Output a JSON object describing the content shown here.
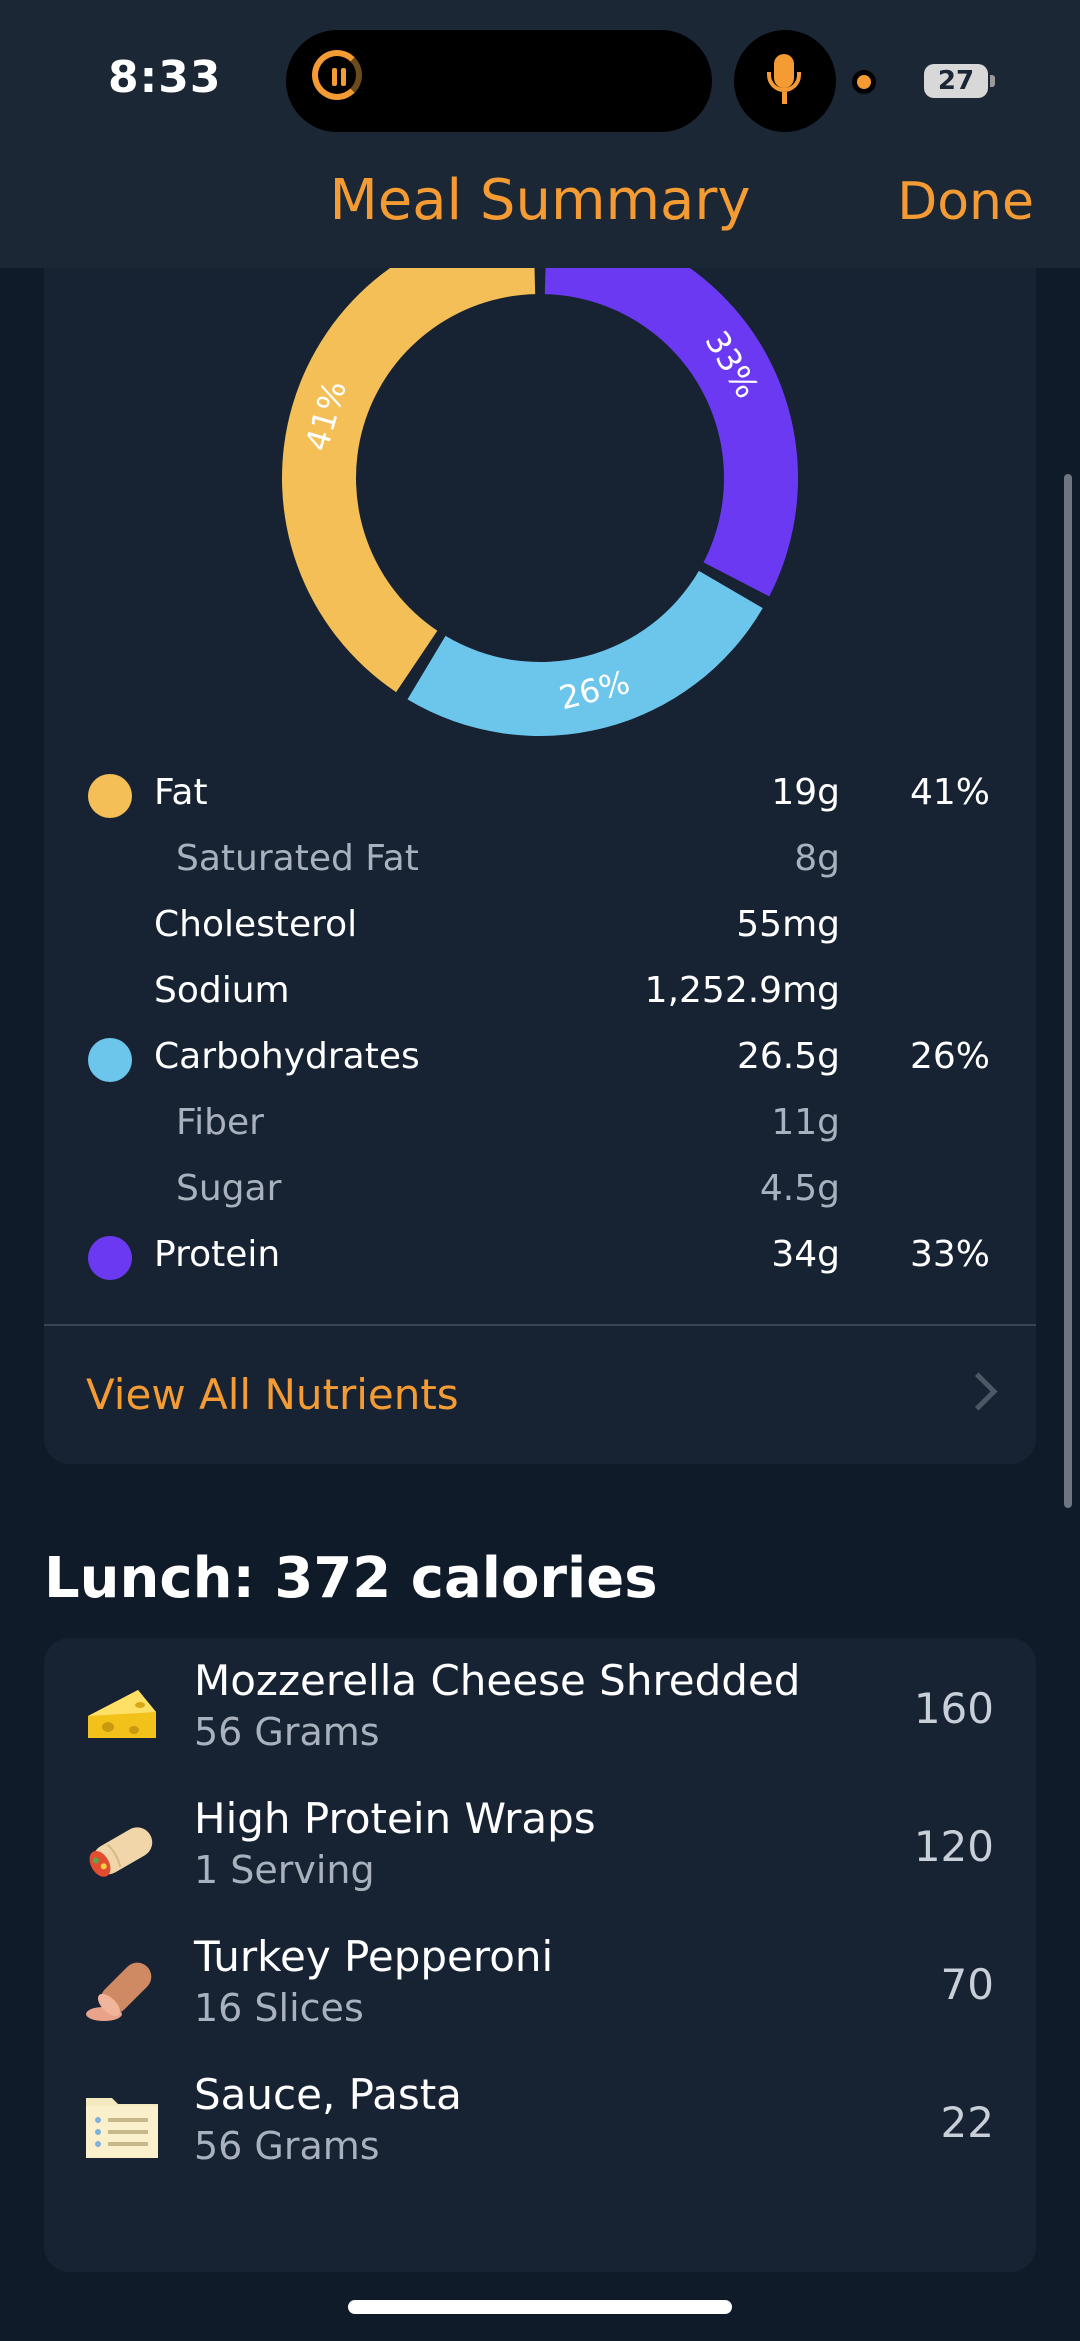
{
  "status_bar": {
    "time": "8:33",
    "battery": "27"
  },
  "header": {
    "title": "Meal Summary",
    "done_label": "Done"
  },
  "chart_data": {
    "type": "pie",
    "categories": [
      "Fat",
      "Carbohydrates",
      "Protein"
    ],
    "values": [
      41,
      26,
      33
    ],
    "labels": [
      "41%",
      "26%",
      "33%"
    ],
    "colors": {
      "Fat": "#f3bf56",
      "Carbohydrates": "#6cc6ec",
      "Protein": "#6b39f2"
    }
  },
  "nutrients": [
    {
      "name": "Fat",
      "amount": "19g",
      "percent": "41%"
    },
    {
      "name": "Saturated Fat",
      "amount": "8g"
    },
    {
      "name": "Cholesterol",
      "amount": "55mg"
    },
    {
      "name": "Sodium",
      "amount": "1,252.9mg"
    },
    {
      "name": "Carbohydrates",
      "amount": "26.5g",
      "percent": "26%"
    },
    {
      "name": "Fiber",
      "amount": "11g"
    },
    {
      "name": "Sugar",
      "amount": "4.5g"
    },
    {
      "name": "Protein",
      "amount": "34g",
      "percent": "33%"
    }
  ],
  "view_all_label": "View All Nutrients",
  "meal": {
    "title": "Lunch: 372 calories",
    "foods": [
      {
        "name": "Mozzerella Cheese Shredded",
        "serving": "56 Grams",
        "calories": "160",
        "icon": "cheese-icon"
      },
      {
        "name": "High Protein Wraps",
        "serving": "1 Serving",
        "calories": "120",
        "icon": "burrito-icon"
      },
      {
        "name": "Turkey Pepperoni",
        "serving": "16 Slices",
        "calories": "70",
        "icon": "sausage-icon"
      },
      {
        "name": "Sauce, Pasta",
        "serving": "56 Grams",
        "calories": "22",
        "icon": "recipe-card-icon"
      }
    ]
  }
}
